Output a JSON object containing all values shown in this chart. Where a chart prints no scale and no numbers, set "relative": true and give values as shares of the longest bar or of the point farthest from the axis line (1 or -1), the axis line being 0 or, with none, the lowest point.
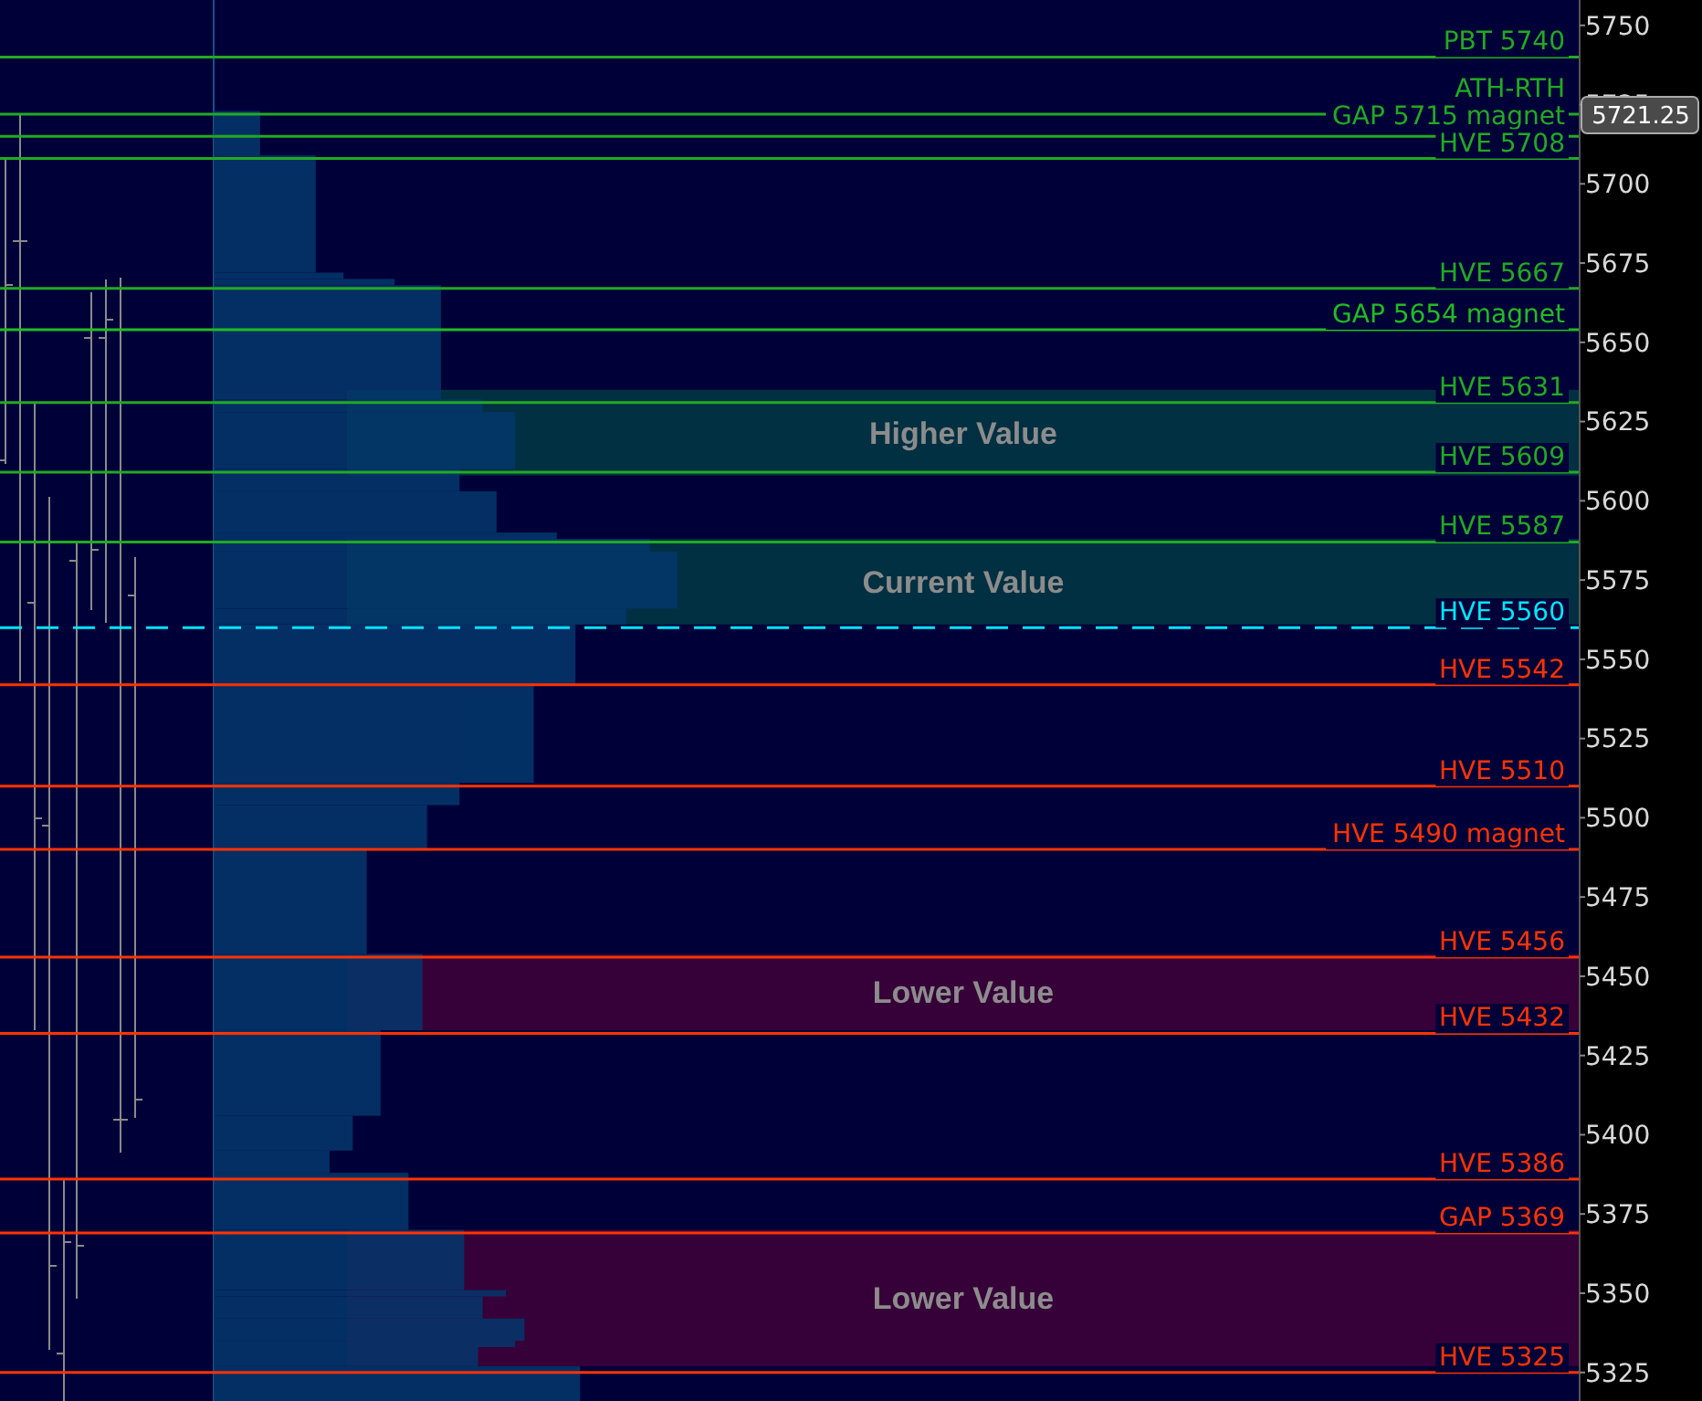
{
  "chart_data": {
    "type": "bar",
    "orientation": "horizontal",
    "relative": true,
    "tick_labels": "y",
    "ylim": [
      5316,
      5758
    ],
    "yticks": [
      5325,
      5350,
      5375,
      5400,
      5425,
      5450,
      5475,
      5500,
      5525,
      5550,
      5575,
      5600,
      5625,
      5650,
      5675,
      5700,
      5725,
      5750
    ],
    "series": [
      {
        "color": "#04386c",
        "x": [
          5321.5,
          5330,
          5334,
          5338.5,
          5345.5,
          5350,
          5360.5,
          5379,
          5391.5,
          5400.5,
          5419.5,
          5445,
          5473.5,
          5497,
          5507.5,
          5526.5,
          5551.5,
          5563.5,
          5575,
          5586,
          5589,
          5596.5,
          5606.5,
          5619,
          5630,
          5650,
          5669,
          5671,
          5690.5,
          5716
        ],
        "values": [
          0.79,
          0.57,
          0.65,
          0.67,
          0.58,
          0.63,
          0.54,
          0.42,
          0.25,
          0.3,
          0.36,
          0.45,
          0.33,
          0.46,
          0.53,
          0.69,
          0.78,
          0.89,
          1,
          0.94,
          0.74,
          0.61,
          0.53,
          0.65,
          0.58,
          0.49,
          0.39,
          0.28,
          0.22,
          0.1
        ]
      }
    ],
    "bands": [
      {
        "axis": "y",
        "from": 5608,
        "to": 5635,
        "label": "Higher Value",
        "color": "#00504a"
      },
      {
        "axis": "y",
        "from": 5561,
        "to": 5588,
        "label": "Current Value",
        "color": "#00504a"
      },
      {
        "axis": "y",
        "from": 5433,
        "to": 5457,
        "label": "Lower Value",
        "color": "#5a0038"
      },
      {
        "axis": "y",
        "from": 5327,
        "to": 5370,
        "label": "Lower Value",
        "color": "#5a0038"
      }
    ],
    "ref_lines": [
      {
        "axis": "y",
        "value": 5740,
        "label": "PBT 5740",
        "color": "#22aa22"
      },
      {
        "axis": "y",
        "value": 5722,
        "label": "ATH-RTH",
        "color": "#22aa22"
      },
      {
        "axis": "y",
        "value": 5715,
        "label": "GAP 5715 magnet",
        "color": "#22aa22"
      },
      {
        "axis": "y",
        "value": 5708,
        "label": "HVE 5708",
        "color": "#22aa22"
      },
      {
        "axis": "y",
        "value": 5667,
        "label": "HVE 5667",
        "color": "#22aa22"
      },
      {
        "axis": "y",
        "value": 5654,
        "label": "GAP 5654 magnet",
        "color": "#22bb22"
      },
      {
        "axis": "y",
        "value": 5631,
        "label": "HVE 5631",
        "color": "#22aa22"
      },
      {
        "axis": "y",
        "value": 5609,
        "label": "HVE 5609",
        "color": "#22aa22"
      },
      {
        "axis": "y",
        "value": 5587,
        "label": "HVE 5587",
        "color": "#22aa22"
      },
      {
        "axis": "y",
        "value": 5560,
        "label": "HVE 5560",
        "color": "#00e5ff",
        "line_style": "dashed"
      },
      {
        "axis": "y",
        "value": 5542,
        "label": "HVE 5542",
        "color": "#ff3300"
      },
      {
        "axis": "y",
        "value": 5510,
        "label": "HVE 5510",
        "color": "#ff3300"
      },
      {
        "axis": "y",
        "value": 5490,
        "label": "HVE 5490 magnet",
        "color": "#ff3300"
      },
      {
        "axis": "y",
        "value": 5456,
        "label": "HVE 5456",
        "color": "#ff3300"
      },
      {
        "axis": "y",
        "value": 5432,
        "label": "HVE 5432",
        "color": "#ff3300"
      },
      {
        "axis": "y",
        "value": 5386,
        "label": "HVE 5386",
        "color": "#ff3300"
      },
      {
        "axis": "y",
        "value": 5369,
        "label": "GAP 5369",
        "color": "#ff3300"
      },
      {
        "axis": "y",
        "value": 5325,
        "label": "HVE 5325",
        "color": "#ff3300"
      }
    ],
    "annotations": [
      "5721.25"
    ]
  }
}
